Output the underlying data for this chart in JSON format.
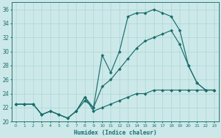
{
  "xlabel": "Humidex (Indice chaleur)",
  "background_color": "#cce8e8",
  "line_color": "#1a6e6e",
  "grid_color": "#aad4d4",
  "xlim": [
    -0.5,
    23.5
  ],
  "ylim": [
    20,
    37
  ],
  "xticks": [
    0,
    1,
    2,
    3,
    4,
    5,
    6,
    7,
    8,
    9,
    10,
    11,
    12,
    13,
    14,
    15,
    16,
    17,
    18,
    19,
    20,
    21,
    22,
    23
  ],
  "yticks": [
    20,
    22,
    24,
    26,
    28,
    30,
    32,
    34,
    36
  ],
  "line_top_x": [
    0,
    1,
    2,
    3,
    4,
    5,
    6,
    7,
    8,
    9,
    10,
    11,
    12,
    13,
    14,
    15,
    16,
    17,
    18,
    19,
    20,
    21,
    22,
    23
  ],
  "line_top_y": [
    22.5,
    22.5,
    22.5,
    21.0,
    21.5,
    21.0,
    20.5,
    21.5,
    23.5,
    22.0,
    29.5,
    27.0,
    30.0,
    35.0,
    35.5,
    35.5,
    36.0,
    35.5,
    35.0,
    33.0,
    28.0,
    25.5,
    24.5,
    24.5
  ],
  "line_mid_x": [
    0,
    1,
    2,
    3,
    4,
    5,
    6,
    7,
    8,
    9,
    10,
    11,
    12,
    13,
    14,
    15,
    16,
    17,
    18,
    19,
    20,
    21,
    22,
    23
  ],
  "line_mid_y": [
    22.5,
    22.5,
    22.5,
    21.0,
    21.5,
    21.0,
    20.5,
    21.5,
    23.0,
    22.0,
    25.0,
    26.0,
    27.5,
    29.0,
    30.5,
    31.5,
    32.0,
    32.5,
    33.0,
    31.0,
    28.0,
    25.5,
    24.5,
    24.5
  ],
  "line_bot_x": [
    0,
    1,
    2,
    3,
    4,
    5,
    6,
    7,
    8,
    9,
    10,
    11,
    12,
    13,
    14,
    15,
    16,
    17,
    18,
    19,
    20,
    21,
    22,
    23
  ],
  "line_bot_y": [
    22.5,
    22.5,
    22.5,
    21.0,
    21.5,
    21.0,
    20.5,
    21.5,
    23.5,
    21.5,
    22.0,
    22.5,
    23.0,
    23.5,
    24.0,
    24.0,
    24.5,
    24.5,
    24.5,
    24.5,
    24.5,
    24.5,
    24.5,
    24.5
  ]
}
